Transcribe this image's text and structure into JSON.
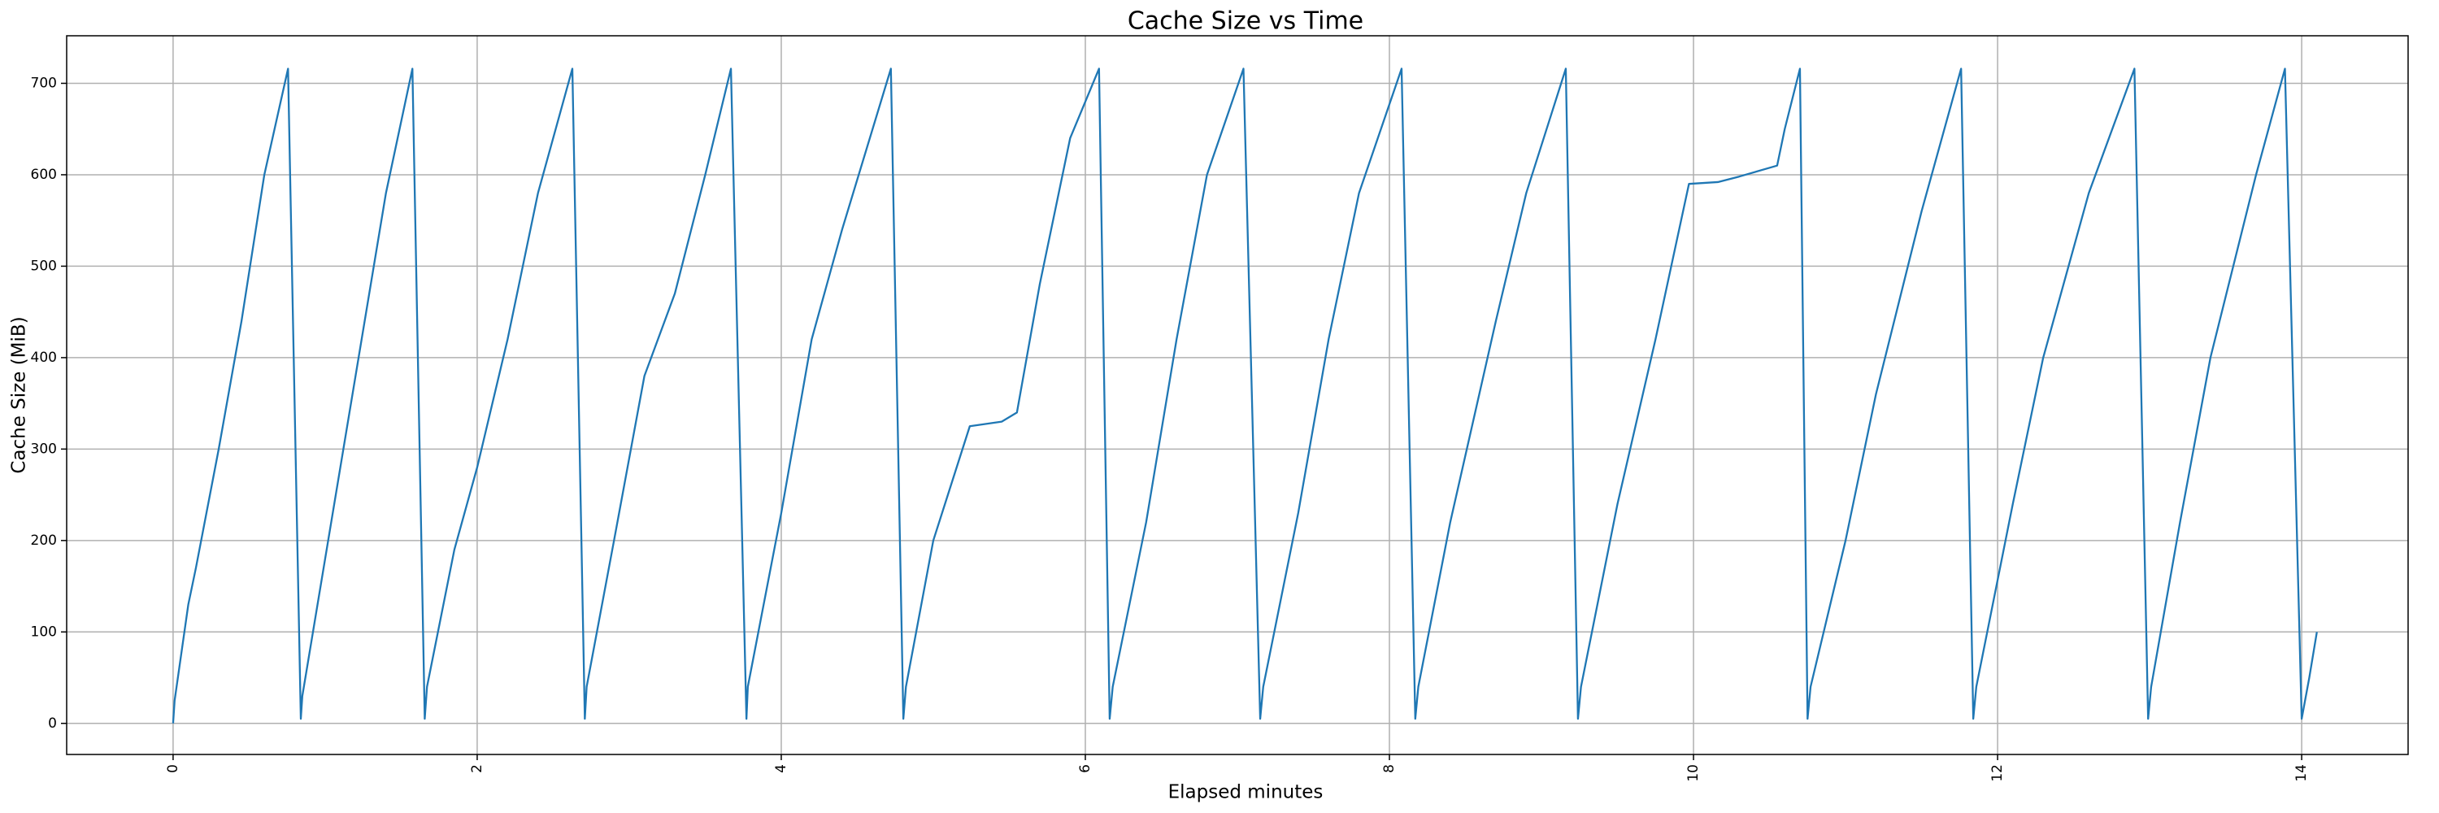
{
  "chart_data": {
    "type": "line",
    "title": "Cache Size vs Time",
    "x_label": "Elapsed minutes",
    "y_label": "Cache Size (MiB)",
    "x": [
      0,
      0.01,
      0.1,
      0.15,
      0.3,
      0.45,
      0.6,
      0.756,
      0.84,
      0.85,
      1.0,
      1.2,
      1.4,
      1.574,
      1.655,
      1.67,
      1.85,
      2.0,
      2.2,
      2.4,
      2.626,
      2.708,
      2.72,
      2.9,
      3.1,
      3.3,
      3.5,
      3.669,
      3.771,
      3.78,
      4.0,
      4.2,
      4.4,
      4.721,
      4.803,
      4.82,
      5.0,
      5.24,
      5.45,
      5.55,
      5.7,
      5.9,
      6.09,
      6.16,
      6.18,
      6.4,
      6.6,
      6.8,
      7.04,
      7.15,
      7.17,
      7.4,
      7.6,
      7.8,
      8.08,
      8.17,
      8.19,
      8.4,
      8.7,
      8.9,
      9.16,
      9.24,
      9.26,
      9.5,
      9.75,
      9.97,
      10.16,
      10.3,
      10.55,
      10.6,
      10.7,
      10.75,
      10.77,
      11.0,
      11.2,
      11.5,
      11.76,
      11.84,
      11.86,
      12.1,
      12.3,
      12.6,
      12.9,
      12.99,
      13.01,
      13.2,
      13.4,
      13.7,
      13.89,
      14.0,
      14.05,
      14.1
    ],
    "series": [
      {
        "name": "Cache Size",
        "color": "#1f77b4",
        "values": [
          0,
          25,
          130,
          170,
          300,
          440,
          600,
          716,
          5,
          30,
          180,
          380,
          580,
          716,
          5,
          40,
          190,
          280,
          420,
          580,
          716,
          5,
          40,
          200,
          380,
          470,
          600,
          716,
          5,
          40,
          230,
          420,
          540,
          716,
          5,
          40,
          200,
          325,
          330,
          340,
          480,
          640,
          716,
          5,
          40,
          220,
          420,
          600,
          716,
          5,
          40,
          230,
          420,
          580,
          716,
          5,
          40,
          220,
          440,
          580,
          716,
          5,
          40,
          240,
          420,
          590,
          592,
          598,
          610,
          650,
          716,
          5,
          40,
          200,
          360,
          560,
          716,
          5,
          40,
          240,
          400,
          580,
          716,
          5,
          40,
          220,
          400,
          600,
          716,
          5,
          50,
          100
        ]
      }
    ],
    "xlim": [
      -0.7,
      14.7
    ],
    "ylim": [
      -34,
      752
    ],
    "xticks": [
      0,
      2,
      4,
      6,
      8,
      10,
      12,
      14
    ],
    "yticks": [
      0,
      100,
      200,
      300,
      400,
      500,
      600,
      700
    ],
    "grid": true
  }
}
